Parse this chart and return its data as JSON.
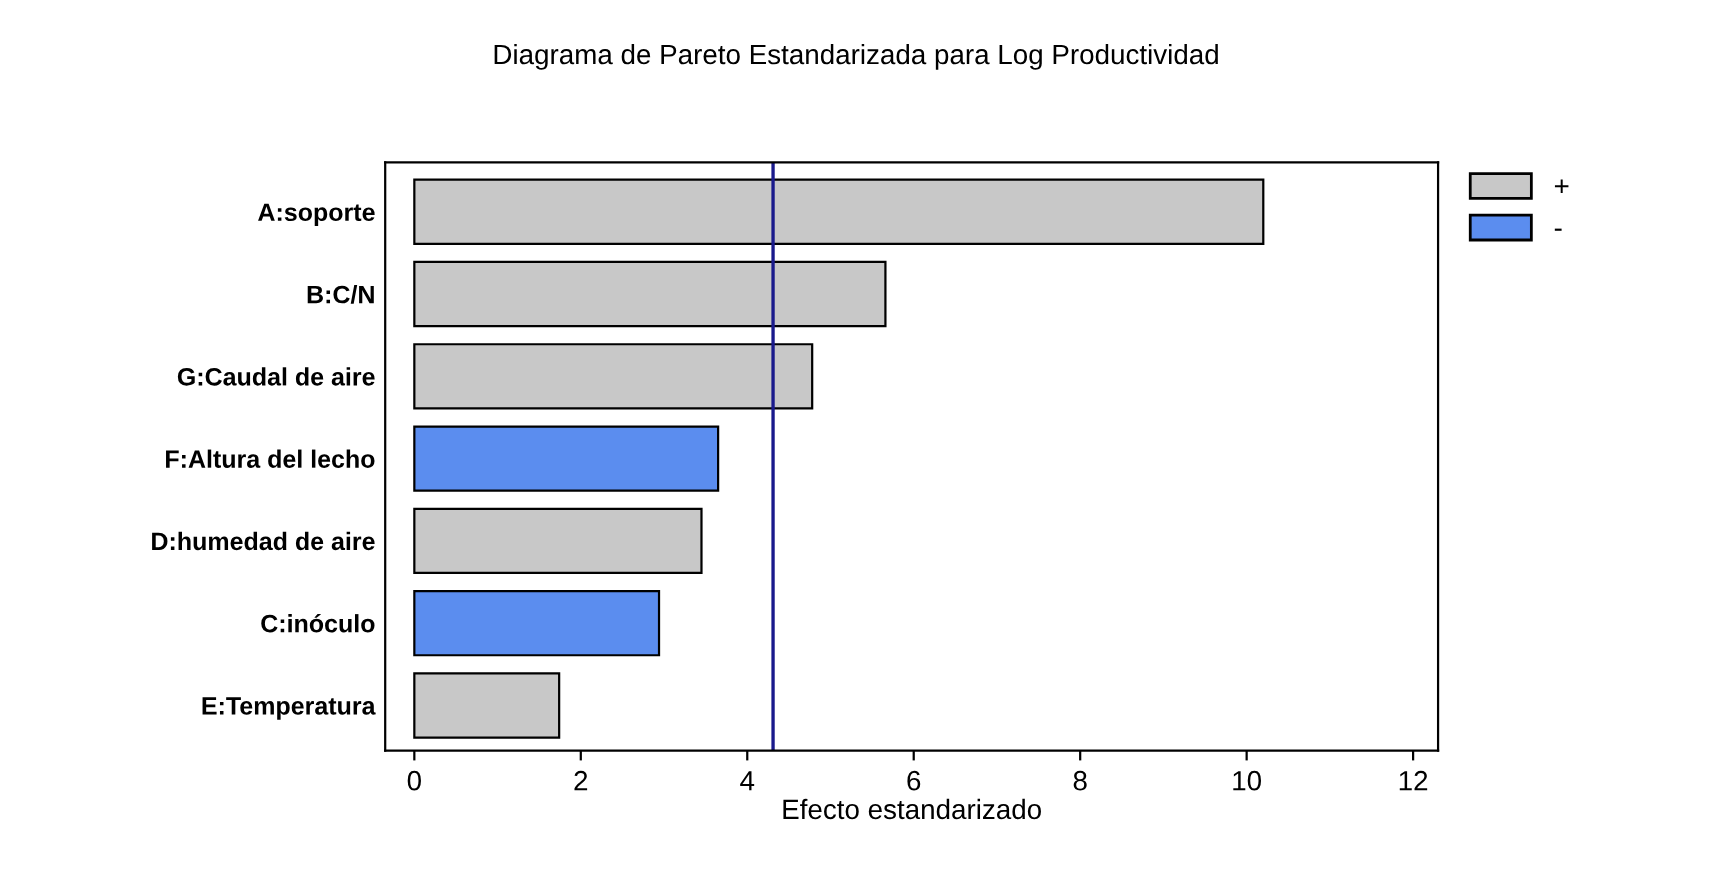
{
  "chart_data": {
    "type": "bar",
    "orientation": "horizontal",
    "title": "Diagrama de Pareto Estandarizada para Log Productividad",
    "xlabel": "Efecto estandarizado",
    "categories": [
      "A:soporte",
      "B:C/N",
      "G:Caudal de aire",
      "F:Altura del lecho",
      "D:humedad de aire",
      "C:inóculo",
      "E:Temperatura"
    ],
    "series": [
      {
        "name": "+",
        "color": "#c8c8c8",
        "values": [
          10.2,
          5.66,
          4.78,
          null,
          3.45,
          null,
          1.74
        ]
      },
      {
        "name": "-",
        "color": "#5b8def",
        "values": [
          null,
          null,
          null,
          3.65,
          null,
          2.94,
          null
        ]
      }
    ],
    "xlim": [
      -0.35,
      12.3
    ],
    "xticks": [
      0,
      2,
      4,
      6,
      8,
      10,
      12
    ],
    "ref_lines": [
      {
        "axis": "x",
        "value": 4.31,
        "color": "#1a1a8c"
      }
    ],
    "legend": "top right",
    "grid": false
  }
}
